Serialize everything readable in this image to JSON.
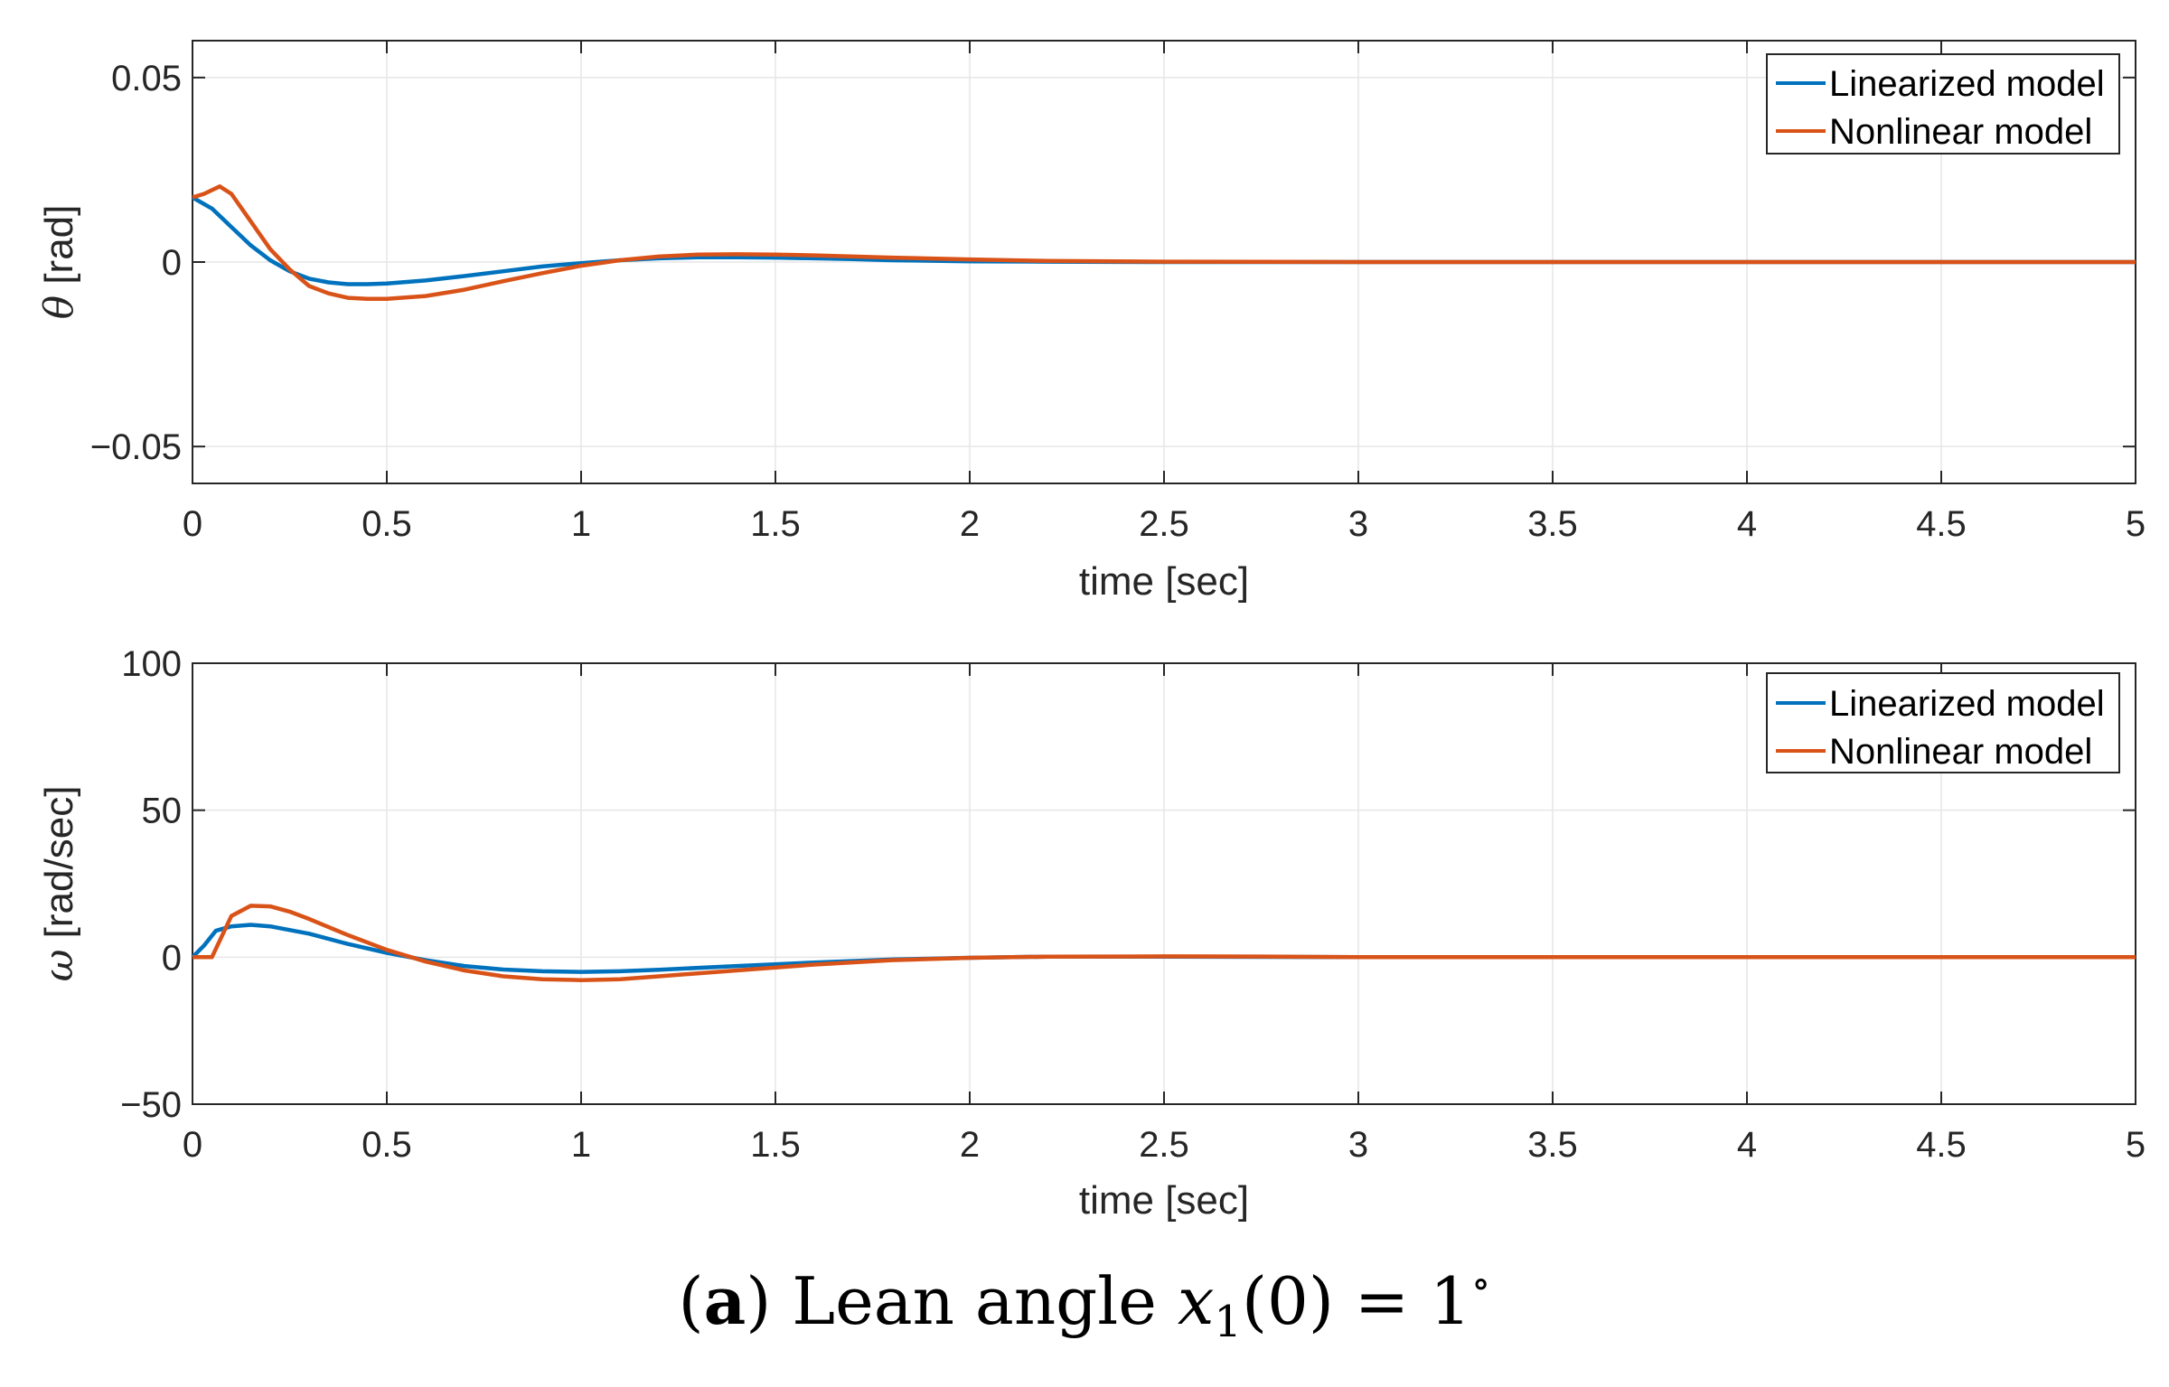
{
  "chart_data": [
    {
      "type": "line",
      "xlabel": "time [sec]",
      "ylabel_symbol": "θ",
      "ylabel_unit": " [rad]",
      "xlim": [
        0,
        5
      ],
      "ylim": [
        -0.06,
        0.06
      ],
      "xticks": [
        0,
        0.5,
        1,
        1.5,
        2,
        2.5,
        3,
        3.5,
        4,
        4.5,
        5
      ],
      "xtick_labels": [
        "0",
        "0.5",
        "1",
        "1.5",
        "2",
        "2.5",
        "3",
        "3.5",
        "4",
        "4.5",
        "5"
      ],
      "yticks": [
        -0.05,
        0,
        0.05
      ],
      "ytick_labels": [
        "−0.05",
        "0",
        "0.05"
      ],
      "grid": true,
      "legend_position": "top-right",
      "series": [
        {
          "name": "Linearized model",
          "color": "#0072BD",
          "x": [
            0,
            0.05,
            0.1,
            0.15,
            0.2,
            0.25,
            0.3,
            0.35,
            0.4,
            0.45,
            0.5,
            0.6,
            0.7,
            0.8,
            0.9,
            1.0,
            1.1,
            1.2,
            1.3,
            1.4,
            1.5,
            1.6,
            1.7,
            1.8,
            2.0,
            2.2,
            2.5,
            3.0,
            5.0
          ],
          "y": [
            0.0175,
            0.0145,
            0.0095,
            0.0045,
            0.0005,
            -0.0025,
            -0.0045,
            -0.0055,
            -0.006,
            -0.006,
            -0.0058,
            -0.005,
            -0.0038,
            -0.0025,
            -0.0012,
            -0.0003,
            0.0005,
            0.001,
            0.0013,
            0.0013,
            0.0012,
            0.001,
            0.0008,
            0.0005,
            0.0002,
            0.0001,
            0,
            0,
            0
          ]
        },
        {
          "name": "Nonlinear model",
          "color": "#D95319",
          "x": [
            0,
            0.03,
            0.07,
            0.1,
            0.15,
            0.2,
            0.25,
            0.3,
            0.35,
            0.4,
            0.45,
            0.5,
            0.6,
            0.7,
            0.8,
            0.9,
            1.0,
            1.1,
            1.2,
            1.3,
            1.4,
            1.5,
            1.6,
            1.7,
            1.8,
            2.0,
            2.2,
            2.5,
            3.0,
            5.0
          ],
          "y": [
            0.0175,
            0.0185,
            0.0205,
            0.0185,
            0.011,
            0.0035,
            -0.002,
            -0.0065,
            -0.0085,
            -0.0097,
            -0.01,
            -0.01,
            -0.0092,
            -0.0075,
            -0.0052,
            -0.003,
            -0.001,
            0.0005,
            0.0015,
            0.002,
            0.0021,
            0.002,
            0.0018,
            0.0015,
            0.0012,
            0.0007,
            0.0003,
            0.0001,
            0,
            0
          ]
        }
      ]
    },
    {
      "type": "line",
      "xlabel": "time [sec]",
      "ylabel_symbol": "ω",
      "ylabel_unit": " [rad/sec]",
      "xlim": [
        0,
        5
      ],
      "ylim": [
        -50,
        100
      ],
      "xticks": [
        0,
        0.5,
        1,
        1.5,
        2,
        2.5,
        3,
        3.5,
        4,
        4.5,
        5
      ],
      "xtick_labels": [
        "0",
        "0.5",
        "1",
        "1.5",
        "2",
        "2.5",
        "3",
        "3.5",
        "4",
        "4.5",
        "5"
      ],
      "yticks": [
        -50,
        0,
        50,
        100
      ],
      "ytick_labels": [
        "−50",
        "0",
        "50",
        "100"
      ],
      "grid": true,
      "legend_position": "top-right",
      "series": [
        {
          "name": "Linearized model",
          "color": "#0072BD",
          "x": [
            0,
            0.03,
            0.06,
            0.1,
            0.15,
            0.2,
            0.3,
            0.4,
            0.5,
            0.6,
            0.7,
            0.8,
            0.9,
            1.0,
            1.1,
            1.2,
            1.4,
            1.6,
            1.8,
            2.0,
            2.2,
            2.5,
            3.0,
            5.0
          ],
          "y": [
            0,
            4,
            9,
            10.5,
            11,
            10.5,
            8,
            4.5,
            1.5,
            -1,
            -3,
            -4.2,
            -4.8,
            -5,
            -4.8,
            -4.3,
            -3,
            -1.8,
            -0.8,
            -0.2,
            0.2,
            0.2,
            0,
            0
          ]
        },
        {
          "name": "Nonlinear model",
          "color": "#D95319",
          "x": [
            0,
            0.05,
            0.1,
            0.15,
            0.2,
            0.25,
            0.3,
            0.4,
            0.5,
            0.6,
            0.7,
            0.8,
            0.9,
            1.0,
            1.1,
            1.2,
            1.4,
            1.6,
            1.8,
            2.0,
            2.2,
            2.5,
            2.8,
            3.0,
            5.0
          ],
          "y": [
            0,
            0,
            14,
            17.5,
            17.3,
            15.5,
            13,
            7.5,
            2.5,
            -1.5,
            -4.5,
            -6.5,
            -7.5,
            -7.8,
            -7.5,
            -6.5,
            -4.5,
            -2.5,
            -1,
            -0.2,
            0.2,
            0.3,
            0.2,
            0,
            0
          ]
        }
      ]
    }
  ],
  "caption": {
    "label": "a",
    "text": "Lean angle",
    "math_var": "x",
    "math_sub": "1",
    "math_arg": "(0) = 1",
    "math_sup": "∘"
  }
}
